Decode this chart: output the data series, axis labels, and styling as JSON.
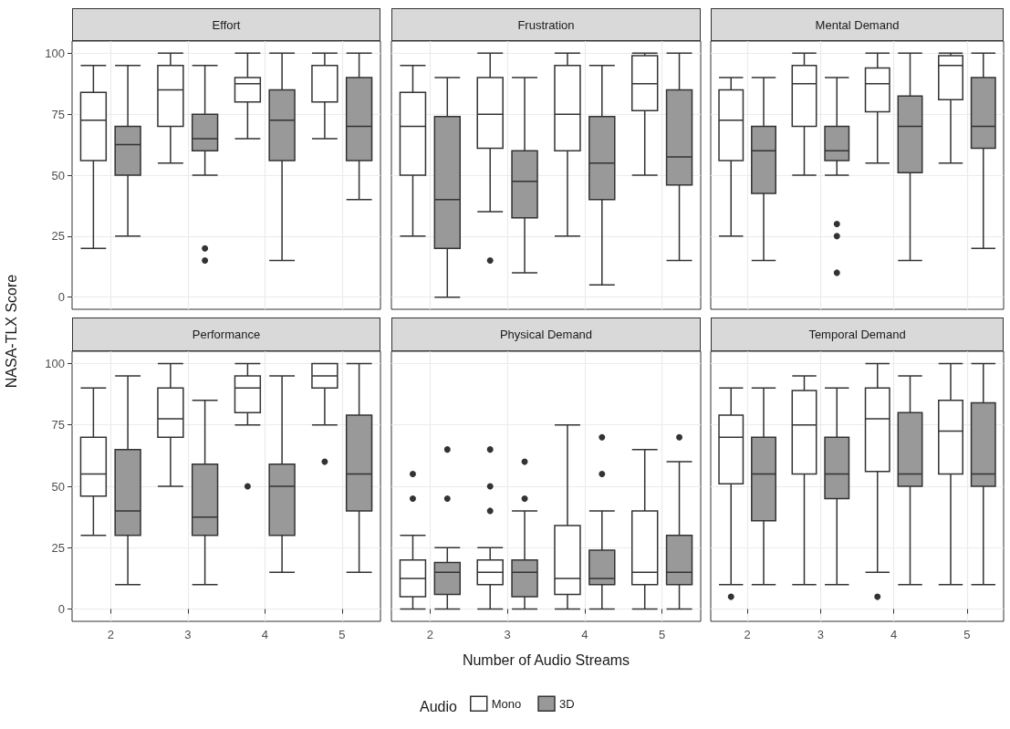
{
  "chart_data": [
    {
      "type": "box",
      "title": "Effort",
      "categories": [
        "2",
        "3",
        "4",
        "5"
      ],
      "ylabel": "NASA-TLX Score",
      "ylim": [
        -5,
        105
      ],
      "yticks": [
        0,
        25,
        50,
        75,
        100
      ],
      "grid": true,
      "tick_labels": "y",
      "series": [
        {
          "color": "#ffffff",
          "boxes": [
            {
              "low": 20,
              "q1": 56,
              "median": 72.5,
              "q3": 84,
              "high": 95
            },
            {
              "low": 55,
              "q1": 70,
              "median": 85,
              "q3": 95,
              "high": 100
            },
            {
              "low": 65,
              "q1": 80,
              "median": 87.5,
              "q3": 90,
              "high": 100
            },
            {
              "low": 65,
              "q1": 80,
              "median": 95,
              "q3": 95,
              "high": 100
            }
          ]
        },
        {
          "color": "#999999",
          "boxes": [
            {
              "low": 25,
              "q1": 50,
              "median": 62.5,
              "q3": 70,
              "high": 95
            },
            {
              "low": 50,
              "q1": 60,
              "median": 65,
              "q3": 75,
              "high": 95,
              "outliers": [
                20,
                15
              ]
            },
            {
              "low": 15,
              "q1": 56,
              "median": 72.5,
              "q3": 85,
              "high": 100
            },
            {
              "low": 40,
              "q1": 56,
              "median": 70,
              "q3": 90,
              "high": 100
            }
          ]
        }
      ]
    },
    {
      "type": "box",
      "title": "Frustration",
      "categories": [
        "2",
        "3",
        "4",
        "5"
      ],
      "ylim": [
        -5,
        105
      ],
      "yticks": [
        0,
        25,
        50,
        75,
        100
      ],
      "grid": true,
      "tick_labels": false,
      "series": [
        {
          "color": "#ffffff",
          "boxes": [
            {
              "low": 25,
              "q1": 50,
              "median": 70,
              "q3": 84,
              "high": 95
            },
            {
              "low": 35,
              "q1": 61,
              "median": 75,
              "q3": 90,
              "high": 100,
              "outliers": [
                15
              ]
            },
            {
              "low": 25,
              "q1": 60,
              "median": 75,
              "q3": 95,
              "high": 100
            },
            {
              "low": 50,
              "q1": 76.5,
              "median": 87.5,
              "q3": 99,
              "high": 100
            }
          ]
        },
        {
          "color": "#999999",
          "boxes": [
            {
              "low": 0,
              "q1": 20,
              "median": 40,
              "q3": 74,
              "high": 90
            },
            {
              "low": 10,
              "q1": 32.5,
              "median": 47.5,
              "q3": 60,
              "high": 90
            },
            {
              "low": 5,
              "q1": 40,
              "median": 55,
              "q3": 74,
              "high": 95
            },
            {
              "low": 15,
              "q1": 46,
              "median": 57.5,
              "q3": 85,
              "high": 100
            }
          ]
        }
      ]
    },
    {
      "type": "box",
      "title": "Mental Demand",
      "categories": [
        "2",
        "3",
        "4",
        "5"
      ],
      "ylim": [
        -5,
        105
      ],
      "yticks": [
        0,
        25,
        50,
        75,
        100
      ],
      "grid": true,
      "tick_labels": false,
      "series": [
        {
          "color": "#ffffff",
          "boxes": [
            {
              "low": 25,
              "q1": 56,
              "median": 72.5,
              "q3": 85,
              "high": 90
            },
            {
              "low": 50,
              "q1": 70,
              "median": 87.5,
              "q3": 95,
              "high": 100
            },
            {
              "low": 55,
              "q1": 76,
              "median": 87.5,
              "q3": 94,
              "high": 100
            },
            {
              "low": 55,
              "q1": 81,
              "median": 95,
              "q3": 99,
              "high": 100
            }
          ]
        },
        {
          "color": "#999999",
          "boxes": [
            {
              "low": 15,
              "q1": 42.5,
              "median": 60,
              "q3": 70,
              "high": 90
            },
            {
              "low": 50,
              "q1": 56,
              "median": 60,
              "q3": 70,
              "high": 90,
              "outliers": [
                30,
                25,
                10
              ]
            },
            {
              "low": 15,
              "q1": 51,
              "median": 70,
              "q3": 82.5,
              "high": 100
            },
            {
              "low": 20,
              "q1": 61,
              "median": 70,
              "q3": 90,
              "high": 100
            }
          ]
        }
      ]
    },
    {
      "type": "box",
      "title": "Performance",
      "categories": [
        "2",
        "3",
        "4",
        "5"
      ],
      "ylim": [
        -5,
        105
      ],
      "yticks": [
        0,
        25,
        50,
        75,
        100
      ],
      "grid": true,
      "series": [
        {
          "color": "#ffffff",
          "boxes": [
            {
              "low": 30,
              "q1": 46,
              "median": 55,
              "q3": 70,
              "high": 90
            },
            {
              "low": 50,
              "q1": 70,
              "median": 77.5,
              "q3": 90,
              "high": 100
            },
            {
              "low": 75,
              "q1": 80,
              "median": 90,
              "q3": 95,
              "high": 100,
              "outliers": [
                50
              ]
            },
            {
              "low": 75,
              "q1": 90,
              "median": 95,
              "q3": 100,
              "high": 100,
              "outliers": [
                60
              ]
            }
          ]
        },
        {
          "color": "#999999",
          "boxes": [
            {
              "low": 10,
              "q1": 30,
              "median": 40,
              "q3": 65,
              "high": 95
            },
            {
              "low": 10,
              "q1": 30,
              "median": 37.5,
              "q3": 59,
              "high": 85
            },
            {
              "low": 15,
              "q1": 30,
              "median": 50,
              "q3": 59,
              "high": 95
            },
            {
              "low": 15,
              "q1": 40,
              "median": 55,
              "q3": 79,
              "high": 100
            }
          ]
        }
      ]
    },
    {
      "type": "box",
      "title": "Physical Demand",
      "categories": [
        "2",
        "3",
        "4",
        "5"
      ],
      "xlabel": "Number of Audio Streams",
      "legend": "bottom",
      "legend_title": "Audio",
      "ylim": [
        -5,
        105
      ],
      "yticks": [
        0,
        25,
        50,
        75,
        100
      ],
      "grid": true,
      "tick_labels": "x",
      "series": [
        {
          "name": "Mono",
          "color": "#ffffff",
          "boxes": [
            {
              "low": 0,
              "q1": 5,
              "median": 12.5,
              "q3": 20,
              "high": 30,
              "outliers": [
                55,
                45
              ]
            },
            {
              "low": 0,
              "q1": 10,
              "median": 15,
              "q3": 20,
              "high": 25,
              "outliers": [
                65,
                50,
                40
              ]
            },
            {
              "low": 0,
              "q1": 6,
              "median": 12.5,
              "q3": 34,
              "high": 75
            },
            {
              "low": 0,
              "q1": 10,
              "median": 15,
              "q3": 40,
              "high": 65
            }
          ]
        },
        {
          "name": "3D",
          "color": "#999999",
          "boxes": [
            {
              "low": 0,
              "q1": 6,
              "median": 15,
              "q3": 19,
              "high": 25,
              "outliers": [
                65,
                45
              ]
            },
            {
              "low": 0,
              "q1": 5,
              "median": 15,
              "q3": 20,
              "high": 40,
              "outliers": [
                60,
                45
              ]
            },
            {
              "low": 0,
              "q1": 10,
              "median": 12.5,
              "q3": 24,
              "high": 40,
              "outliers": [
                70,
                55
              ]
            },
            {
              "low": 0,
              "q1": 10,
              "median": 15,
              "q3": 30,
              "high": 60,
              "outliers": [
                70
              ]
            }
          ]
        }
      ]
    },
    {
      "type": "box",
      "title": "Temporal Demand",
      "categories": [
        "2",
        "3",
        "4",
        "5"
      ],
      "ylim": [
        -5,
        105
      ],
      "yticks": [
        0,
        25,
        50,
        75,
        100
      ],
      "grid": true,
      "tick_labels": "x",
      "series": [
        {
          "color": "#ffffff",
          "boxes": [
            {
              "low": 10,
              "q1": 51,
              "median": 70,
              "q3": 79,
              "high": 90,
              "outliers": [
                5
              ]
            },
            {
              "low": 10,
              "q1": 55,
              "median": 75,
              "q3": 89,
              "high": 95
            },
            {
              "low": 15,
              "q1": 56,
              "median": 77.5,
              "q3": 90,
              "high": 100,
              "outliers": [
                5
              ]
            },
            {
              "low": 10,
              "q1": 55,
              "median": 72.5,
              "q3": 85,
              "high": 100
            }
          ]
        },
        {
          "color": "#999999",
          "boxes": [
            {
              "low": 10,
              "q1": 36,
              "median": 55,
              "q3": 70,
              "high": 90
            },
            {
              "low": 10,
              "q1": 45,
              "median": 55,
              "q3": 70,
              "high": 90
            },
            {
              "low": 10,
              "q1": 50,
              "median": 55,
              "q3": 80,
              "high": 95
            },
            {
              "low": 10,
              "q1": 50,
              "median": 55,
              "q3": 84,
              "high": 100
            }
          ]
        }
      ]
    }
  ]
}
